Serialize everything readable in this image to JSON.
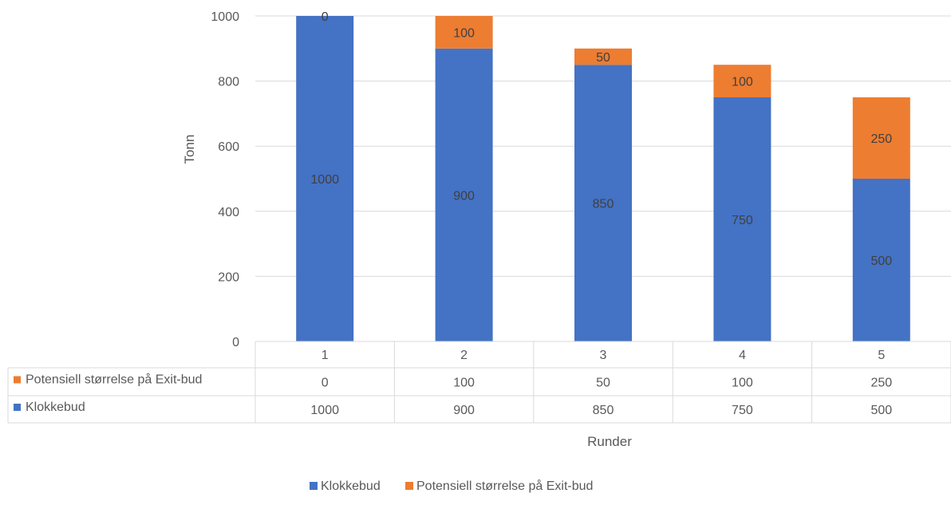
{
  "chart_data": {
    "type": "bar",
    "stacked": true,
    "categories": [
      "1",
      "2",
      "3",
      "4",
      "5"
    ],
    "series": [
      {
        "name": "Klokkebud",
        "values": [
          1000,
          900,
          850,
          750,
          500
        ],
        "color": "#4472c4"
      },
      {
        "name": "Potensiell størrelse på Exit-bud",
        "values": [
          0,
          100,
          50,
          100,
          250
        ],
        "color": "#ed7d31"
      }
    ],
    "xlabel": "Runder",
    "ylabel": "Tonn",
    "ylim": [
      0,
      1000
    ],
    "yticks": [
      "0",
      "200",
      "400",
      "600",
      "800",
      "1000"
    ],
    "grid": true,
    "legend": "bottom",
    "data_table": {
      "rows": [
        {
          "series": "Potensiell størrelse på Exit-bud",
          "values": [
            "0",
            "100",
            "50",
            "100",
            "250"
          ]
        },
        {
          "series": "Klokkebud",
          "values": [
            "1000",
            "900",
            "850",
            "750",
            "500"
          ]
        }
      ]
    }
  }
}
